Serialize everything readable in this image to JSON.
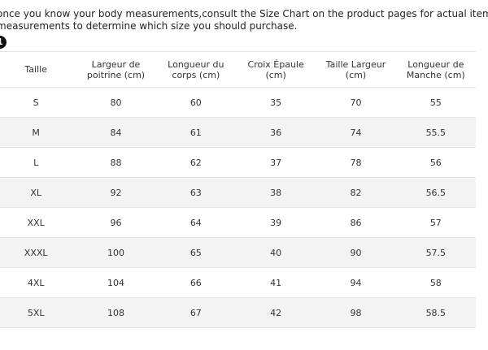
{
  "intro": {
    "lines": [
      "once you know your body measurements,consult the Size Chart on the product pages for actual item",
      "measurements to determine which size you should purchase."
    ],
    "badge": "1"
  },
  "table": {
    "header": [
      "Taille",
      "Largeur de poitrine (cm)",
      "Longueur du corps (cm)",
      "Croix Épaule (cm)",
      "Taille Largeur (cm)",
      "Longueur de Manche (cm)"
    ],
    "rows": [
      [
        "S",
        80,
        60,
        35,
        70,
        55
      ],
      [
        "M",
        84,
        61,
        36,
        74,
        55.5
      ],
      [
        "L",
        88,
        62,
        37,
        78,
        56
      ],
      [
        "XL",
        92,
        63,
        38,
        82,
        56.5
      ],
      [
        "XXL",
        96,
        64,
        39,
        86,
        57
      ],
      [
        "XXXL",
        100,
        65,
        40,
        90,
        57.5
      ],
      [
        "4XL",
        104,
        66,
        41,
        94,
        58
      ],
      [
        "5XL",
        108,
        67,
        42,
        98,
        58.5
      ]
    ]
  }
}
